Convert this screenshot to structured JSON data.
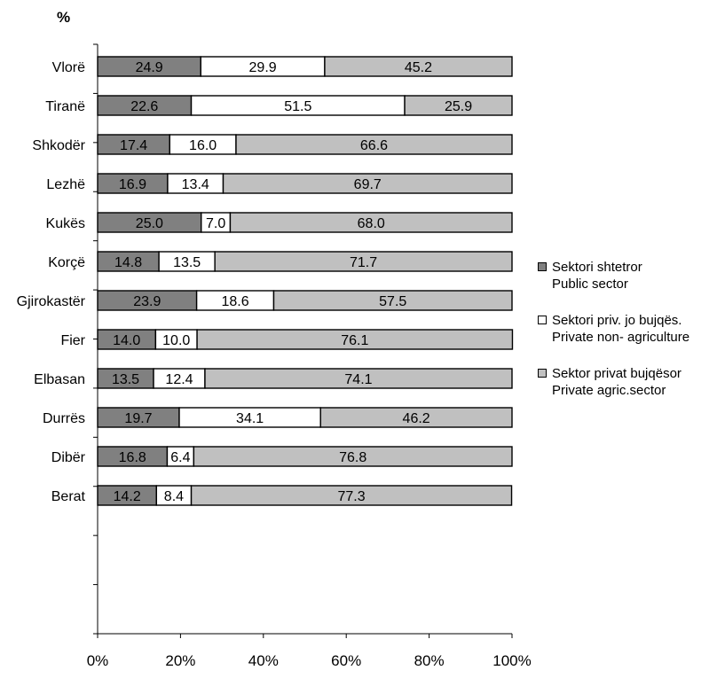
{
  "chart_data": {
    "type": "bar",
    "orientation": "horizontal",
    "stacked": "percent",
    "unit_label": "%",
    "categories": [
      "Vlorë",
      "Tiranë",
      "Shkodër",
      "Lezhë",
      "Kukës",
      "Korçë",
      "Gjirokastër",
      "Fier",
      "Elbasan",
      "Durrës",
      "Dibër",
      "Berat"
    ],
    "series": [
      {
        "name": "Sektori shtetror\nPublic sector",
        "color": "#808080",
        "values": [
          24.9,
          22.6,
          17.4,
          16.9,
          25.0,
          14.8,
          23.9,
          14.0,
          13.5,
          19.7,
          16.8,
          14.2
        ],
        "labels": [
          "24.9",
          "22.6",
          "17.4",
          "16.9",
          "25.0",
          "14.8",
          "23.9",
          "14.0",
          "13.5",
          "19.7",
          "16.8",
          "14.2"
        ]
      },
      {
        "name": "Sektori priv. jo bujqës.\nPrivate non- agriculture",
        "color": "#ffffff",
        "values": [
          29.9,
          51.5,
          16.0,
          13.4,
          7.0,
          13.5,
          18.6,
          10.0,
          12.4,
          34.1,
          6.4,
          8.4
        ],
        "labels": [
          "29.9",
          "51.5",
          "16.0",
          "13.4",
          "7.0",
          "13.5",
          "18.6",
          "10.0",
          "12.4",
          "34.1",
          "6.4",
          "8.4"
        ]
      },
      {
        "name": "Sektor privat bujqësor\nPrivate agric.sector",
        "color": "#c0c0c0",
        "values": [
          45.2,
          25.9,
          66.6,
          69.7,
          68.0,
          71.7,
          57.5,
          76.1,
          74.1,
          46.2,
          76.8,
          77.3
        ],
        "labels": [
          "45.2",
          "25.9",
          "66.6",
          "69.7",
          "68.0",
          "71.7",
          "57.5",
          "76.1",
          "74.1",
          "46.2",
          "76.8",
          "77.3"
        ]
      }
    ],
    "x_ticks": [
      "0%",
      "20%",
      "40%",
      "60%",
      "80%",
      "100%"
    ],
    "xlim": [
      0,
      100
    ],
    "grid": false,
    "legend_position": "right"
  }
}
